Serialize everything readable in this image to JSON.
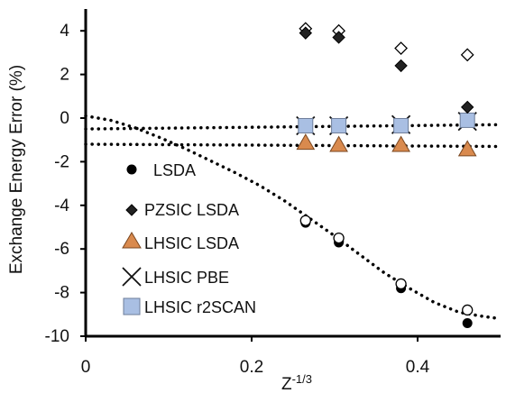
{
  "chart_data": {
    "type": "scatter",
    "xlabel": {
      "base": "Z",
      "superscript": "-1/3"
    },
    "ylabel": "Exchange Energy Error (%)",
    "xlim": [
      0,
      0.5
    ],
    "ylim": [
      -10,
      5
    ],
    "xticks": [
      {
        "value": 0,
        "label": "0"
      },
      {
        "value": 0.2,
        "label": "0.2"
      },
      {
        "value": 0.4,
        "label": "0.4"
      }
    ],
    "yticks": [
      {
        "value": 4,
        "label": "4"
      },
      {
        "value": 2,
        "label": "2"
      },
      {
        "value": 0,
        "label": "0"
      },
      {
        "value": -2,
        "label": "-2"
      },
      {
        "value": -4,
        "label": "-4"
      },
      {
        "value": -6,
        "label": "-6"
      },
      {
        "value": -8,
        "label": "-8"
      },
      {
        "value": -10,
        "label": "-10"
      }
    ],
    "grid": false,
    "legend_position": "left-bottom",
    "series": [
      {
        "name": "LSDA",
        "marker": "circle",
        "color": "#000000",
        "legend": true,
        "points": [
          {
            "x": 0.265,
            "y": -4.8
          },
          {
            "x": 0.305,
            "y": -5.7
          },
          {
            "x": 0.38,
            "y": -7.8
          },
          {
            "x": 0.46,
            "y": -9.4
          }
        ]
      },
      {
        "name": "",
        "marker": "circle-open",
        "color": "#000000",
        "legend": false,
        "points": [
          {
            "x": 0.265,
            "y": -4.7
          },
          {
            "x": 0.305,
            "y": -5.5
          },
          {
            "x": 0.38,
            "y": -7.6
          },
          {
            "x": 0.46,
            "y": -8.8
          }
        ]
      },
      {
        "name": "PZSIC LSDA",
        "marker": "diamond",
        "color": "#222222",
        "legend": true,
        "points": [
          {
            "x": 0.265,
            "y": 3.9
          },
          {
            "x": 0.305,
            "y": 3.7
          },
          {
            "x": 0.38,
            "y": 2.4
          },
          {
            "x": 0.46,
            "y": 0.5
          }
        ]
      },
      {
        "name": "",
        "marker": "diamond-open",
        "color": "#000000",
        "legend": false,
        "points": [
          {
            "x": 0.265,
            "y": 4.1
          },
          {
            "x": 0.305,
            "y": 4.0
          },
          {
            "x": 0.38,
            "y": 3.2
          },
          {
            "x": 0.46,
            "y": 2.9
          }
        ]
      },
      {
        "name": "LHSIC LSDA",
        "marker": "triangle",
        "color": "#d98a4e",
        "legend": true,
        "points": [
          {
            "x": 0.265,
            "y": -1.1
          },
          {
            "x": 0.305,
            "y": -1.2
          },
          {
            "x": 0.38,
            "y": -1.2
          },
          {
            "x": 0.46,
            "y": -1.4
          }
        ]
      },
      {
        "name": "LHSIC PBE",
        "marker": "cross",
        "color": "#111111",
        "legend": true,
        "points": [
          {
            "x": 0.265,
            "y": -0.35
          },
          {
            "x": 0.305,
            "y": -0.35
          },
          {
            "x": 0.38,
            "y": -0.3
          },
          {
            "x": 0.46,
            "y": -0.15
          }
        ]
      },
      {
        "name": "LHSIC r2SCAN",
        "marker": "square",
        "color": "#a9bfe3",
        "legend": true,
        "points": [
          {
            "x": 0.265,
            "y": -0.35
          },
          {
            "x": 0.305,
            "y": -0.35
          },
          {
            "x": 0.38,
            "y": -0.35
          },
          {
            "x": 0.46,
            "y": -0.1
          }
        ]
      }
    ],
    "trendlines": [
      {
        "style": "dotted",
        "color": "#000000",
        "points": [
          {
            "x": 0.0,
            "y": 0.1
          },
          {
            "x": 0.03,
            "y": -0.1
          },
          {
            "x": 0.06,
            "y": -0.45
          },
          {
            "x": 0.09,
            "y": -0.9
          },
          {
            "x": 0.12,
            "y": -1.4
          },
          {
            "x": 0.15,
            "y": -1.95
          },
          {
            "x": 0.18,
            "y": -2.5
          },
          {
            "x": 0.21,
            "y": -3.1
          },
          {
            "x": 0.24,
            "y": -3.8
          },
          {
            "x": 0.27,
            "y": -4.6
          },
          {
            "x": 0.3,
            "y": -5.4
          },
          {
            "x": 0.33,
            "y": -6.25
          },
          {
            "x": 0.36,
            "y": -7.1
          },
          {
            "x": 0.39,
            "y": -7.8
          },
          {
            "x": 0.42,
            "y": -8.45
          },
          {
            "x": 0.45,
            "y": -8.9
          },
          {
            "x": 0.48,
            "y": -9.1
          },
          {
            "x": 0.5,
            "y": -9.2
          }
        ]
      },
      {
        "style": "dotted",
        "color": "#000000",
        "points": [
          {
            "x": 0.0,
            "y": -0.5
          },
          {
            "x": 0.5,
            "y": -0.3
          }
        ]
      },
      {
        "style": "dotted",
        "color": "#000000",
        "points": [
          {
            "x": 0.0,
            "y": -1.2
          },
          {
            "x": 0.5,
            "y": -1.3
          }
        ]
      }
    ]
  }
}
